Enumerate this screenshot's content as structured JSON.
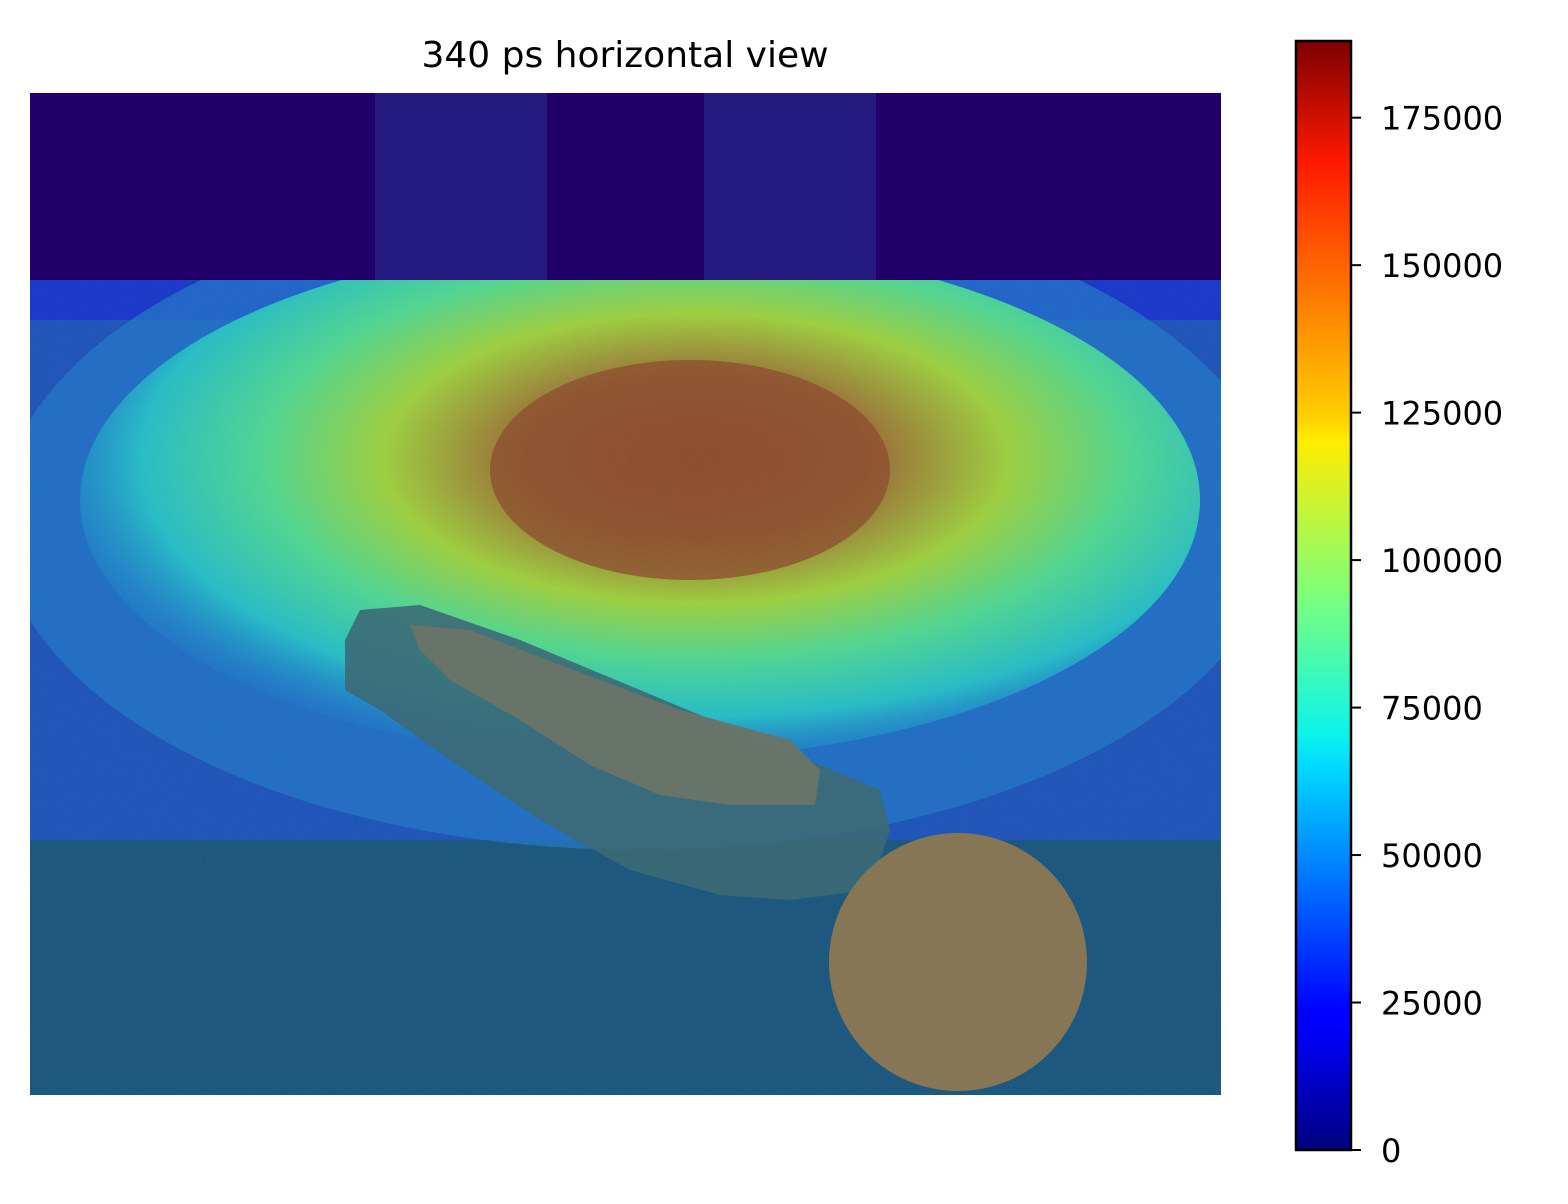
{
  "chart_data": {
    "type": "heatmap",
    "title": "340 ps horizontal view",
    "xlabel": "",
    "ylabel": "",
    "axes_visible": false,
    "colormap": "jet",
    "colorbar": {
      "vmin": 0,
      "vmax": 188000,
      "ticks": [
        0,
        25000,
        50000,
        75000,
        100000,
        125000,
        150000,
        175000
      ],
      "tick_labels": [
        "0",
        "25000",
        "50000",
        "75000",
        "100000",
        "125000",
        "150000",
        "175000"
      ],
      "placement": "right"
    },
    "field": {
      "hot_spot_peak": 180000,
      "hot_spot_center_fraction": [
        0.56,
        0.38
      ],
      "outer_region_level": 40000
    },
    "overlay_colors": {
      "top_band": "#22006a",
      "top_band_blocks": "#241a80",
      "tissue_shapes": "#8a7a58",
      "base": "#17547c"
    }
  }
}
